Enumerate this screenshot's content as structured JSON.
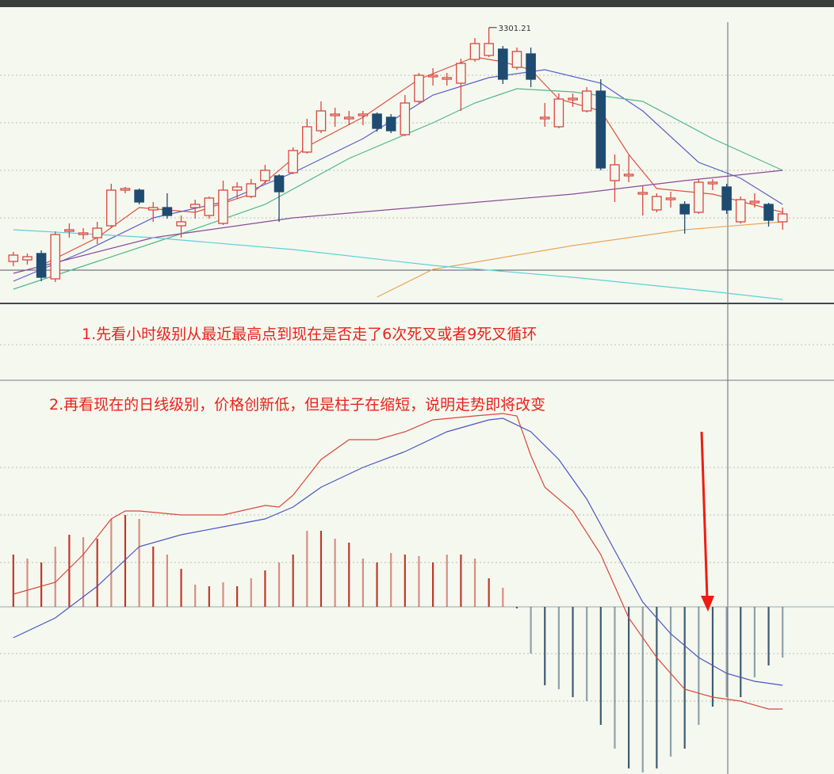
{
  "annotations": [
    "1.先看小时级别从最近最高点到现在是否走了6次死叉或者9死叉循环",
    "2.再看现在的日线级别，价格创新低，但是柱子在缩短，说明走势即将改变"
  ],
  "chart_data": [
    {
      "type": "candlestick",
      "max_label": "3301.21",
      "ylim": [
        2950,
        3320
      ],
      "up_color": "#d9473f",
      "down_color": "#1f4b70",
      "open": [
        3006,
        3008,
        3016,
        2984,
        3044,
        3040,
        3036,
        3051,
        3096,
        3096,
        3071,
        3074,
        3051,
        3074,
        3064,
        3054,
        3096,
        3088,
        3108,
        3114,
        3118,
        3144,
        3171,
        3190,
        3186,
        3190,
        3192,
        3188,
        3166,
        3208,
        3239,
        3236,
        3231,
        3261,
        3266,
        3274,
        3251,
        3268,
        3186,
        3176,
        3210,
        3196,
        3221,
        3108,
        3114,
        3091,
        3071,
        3084,
        3078,
        3068,
        3104,
        3100,
        3056,
        3080,
        3078,
        3056
      ],
      "high": [
        3018,
        3016,
        3020,
        3044,
        3054,
        3048,
        3056,
        3104,
        3100,
        3098,
        3081,
        3092,
        3064,
        3084,
        3088,
        3108,
        3106,
        3110,
        3128,
        3116,
        3150,
        3186,
        3208,
        3200,
        3196,
        3196,
        3194,
        3192,
        3216,
        3244,
        3250,
        3244,
        3262,
        3288,
        3301.21,
        3278,
        3276,
        3276,
        3206,
        3218,
        3218,
        3226,
        3236,
        3141,
        3140,
        3101,
        3092,
        3094,
        3082,
        3110,
        3110,
        3104,
        3088,
        3092,
        3080,
        3074
      ],
      "low": [
        3000,
        3002,
        2981,
        2980,
        3036,
        3034,
        3028,
        3048,
        3092,
        3078,
        3056,
        3060,
        3036,
        3060,
        3060,
        3052,
        3086,
        3086,
        3104,
        3056,
        3116,
        3142,
        3168,
        3176,
        3178,
        3178,
        3170,
        3168,
        3164,
        3206,
        3228,
        3228,
        3196,
        3258,
        3264,
        3230,
        3248,
        3226,
        3176,
        3174,
        3201,
        3194,
        3121,
        3081,
        3106,
        3064,
        3068,
        3074,
        3041,
        3066,
        3096,
        3066,
        3054,
        3074,
        3050,
        3046
      ],
      "close": [
        3014,
        3012,
        2986,
        3040,
        3046,
        3042,
        3048,
        3096,
        3098,
        3081,
        3074,
        3064,
        3056,
        3078,
        3086,
        3096,
        3100,
        3104,
        3121,
        3094,
        3146,
        3176,
        3196,
        3192,
        3188,
        3192,
        3174,
        3171,
        3206,
        3241,
        3241,
        3238,
        3256,
        3281,
        3281,
        3236,
        3271,
        3236,
        3188,
        3211,
        3212,
        3221,
        3124,
        3128,
        3116,
        3093,
        3088,
        3086,
        3066,
        3106,
        3106,
        3071,
        3084,
        3082,
        3058,
        3066
      ],
      "series": [
        {
          "color": "#e0503f",
          "x": [
            2,
            6,
            9,
            13,
            17,
            21,
            25,
            29,
            33,
            35,
            37,
            39,
            42,
            44,
            46,
            50,
            55
          ],
          "values": [
            3001,
            3036,
            3074,
            3068,
            3091,
            3151,
            3188,
            3236,
            3264,
            3258,
            3248,
            3211,
            3196,
            3141,
            3098,
            3091,
            3068
          ]
        },
        {
          "color": "#5a5fc8",
          "x": [
            0,
            5,
            10,
            15,
            20,
            25,
            30,
            34,
            38,
            42,
            45,
            49,
            52,
            55
          ],
          "values": [
            2981,
            3018,
            3061,
            3081,
            3118,
            3161,
            3216,
            3238,
            3248,
            3231,
            3196,
            3131,
            3111,
            3078
          ]
        },
        {
          "color": "#4fb88a",
          "x": [
            0,
            6,
            12,
            18,
            24,
            30,
            33,
            36,
            40,
            45,
            50,
            55
          ],
          "values": [
            2971,
            3006,
            3041,
            3078,
            3136,
            3181,
            3206,
            3224,
            3220,
            3208,
            3161,
            3121
          ]
        },
        {
          "color": "#8a4a9a",
          "x": [
            0,
            10,
            20,
            30,
            40,
            48,
            55
          ],
          "values": [
            2991,
            3036,
            3061,
            3076,
            3091,
            3108,
            3121
          ]
        },
        {
          "color": "#e8a65a",
          "x": [
            26,
            30,
            40,
            48,
            55
          ],
          "values": [
            2961,
            2996,
            3026,
            3046,
            3056
          ]
        },
        {
          "color": "#5ccfd8",
          "x": [
            0,
            10,
            20,
            30,
            40,
            50,
            55
          ],
          "values": [
            3046,
            3036,
            3021,
            3001,
            2986,
            2968,
            2958
          ]
        }
      ]
    },
    {
      "type": "bar",
      "ylim": [
        -42,
        56
      ],
      "up_color": "#c0392b",
      "down_color": "#3d5c70",
      "values": [
        13.2,
        12.2,
        11.2,
        15.2,
        18.2,
        17.6,
        17.2,
        22.2,
        23.2,
        22.2,
        15.2,
        13.2,
        9.6,
        5.6,
        5.2,
        6.2,
        5.2,
        7.2,
        9.2,
        11.2,
        13.2,
        19.2,
        19.2,
        17.2,
        16.2,
        12.2,
        11.2,
        13.6,
        13.2,
        12.8,
        11.2,
        13.2,
        13.2,
        12.2,
        7.2,
        4.8,
        -0.4,
        -11.8,
        -19.8,
        -20.8,
        -22.8,
        -23.8,
        -29.8,
        -35.8,
        -40.8,
        -41.8,
        -40.8,
        -37.8,
        -35.8,
        -29.8,
        -25.2,
        -22.8,
        -22.8,
        -17.8,
        -14.8,
        -12.8
      ],
      "series": [
        {
          "color": "#d9473f",
          "x": [
            0,
            3,
            5,
            7,
            8,
            9,
            12,
            15,
            18,
            19,
            20,
            22,
            24,
            26,
            28,
            30,
            33,
            35,
            36,
            37,
            38,
            40,
            42,
            44,
            46,
            48,
            50,
            52,
            54,
            55
          ],
          "values": [
            3.2,
            6.2,
            13.2,
            22.2,
            24.2,
            24.2,
            23.2,
            23.2,
            25.6,
            25.2,
            28.2,
            37.2,
            42.2,
            42.2,
            44.2,
            47.2,
            48.2,
            48.8,
            48.2,
            38.2,
            30.2,
            24.2,
            13.2,
            -2.8,
            -12.8,
            -20.8,
            -22.8,
            -23.8,
            -25.8,
            -25.8
          ]
        },
        {
          "color": "#4a55c0",
          "x": [
            0,
            3,
            6,
            9,
            12,
            15,
            18,
            20,
            22,
            25,
            28,
            31,
            34,
            35,
            37,
            39,
            41,
            43,
            45,
            47,
            49,
            51,
            53,
            55
          ],
          "values": [
            -7.8,
            -2.8,
            5.2,
            15.2,
            18.2,
            20.2,
            22.2,
            25.2,
            30.2,
            35.2,
            39.2,
            44.2,
            47.2,
            47.6,
            44.2,
            37.2,
            27.2,
            14.2,
            1.2,
            -6.8,
            -12.8,
            -16.8,
            -18.8,
            -19.8
          ]
        }
      ]
    }
  ]
}
